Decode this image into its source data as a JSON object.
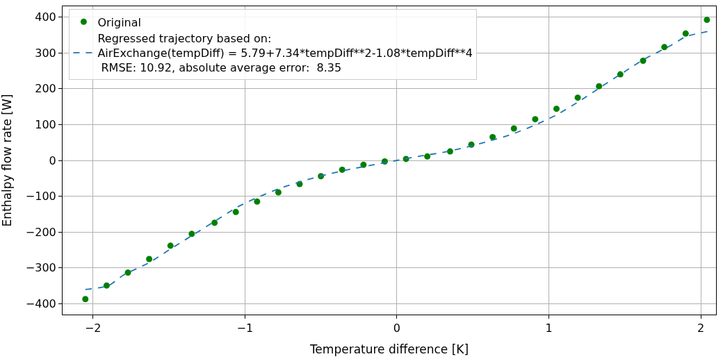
{
  "chart_data": {
    "type": "scatter",
    "xlabel": "Temperature difference [K]",
    "ylabel": "Enthalpy flow rate [W]",
    "x": [
      -2.05,
      -1.91,
      -1.77,
      -1.63,
      -1.49,
      -1.35,
      -1.2,
      -1.06,
      -0.92,
      -0.78,
      -0.64,
      -0.5,
      -0.36,
      -0.22,
      -0.08,
      0.06,
      0.2,
      0.35,
      0.49,
      0.63,
      0.77,
      0.91,
      1.05,
      1.19,
      1.33,
      1.47,
      1.62,
      1.76,
      1.9,
      2.04
    ],
    "series": [
      {
        "name": "Original",
        "color": "#008000",
        "marker": "circle",
        "values": [
          -387,
          -349,
          -313,
          -275,
          -238,
          -205,
          -174,
          -144,
          -115,
          -89,
          -66,
          -44,
          -26,
          -12,
          -3,
          4,
          11,
          25,
          44,
          65,
          89,
          115,
          144,
          175,
          207,
          240,
          278,
          316,
          354,
          392
        ]
      },
      {
        "name": "Regressed trajectory based on:\nAirExchange(tempDiff) = 5.79+7.34*tempDiff**2-1.08*tempDiff**4\n RMSE: 10.92, absolute average error:  8.35",
        "type": "line",
        "line_style": "dashed",
        "marker": "none",
        "color": "#1f77b4",
        "x": [
          -2.05,
          -1.9,
          -1.8,
          -1.63,
          -1.5,
          -1.35,
          -1.2,
          -1.05,
          -0.9,
          -0.75,
          -0.6,
          -0.45,
          -0.3,
          -0.15,
          0,
          0.15,
          0.3,
          0.45,
          0.6,
          0.75,
          0.9,
          1.05,
          1.2,
          1.35,
          1.5,
          1.63,
          1.8,
          1.9,
          2.05
        ],
        "values": [
          -360,
          -350,
          -320,
          -285,
          -250,
          -210,
          -170,
          -130,
          -100,
          -75,
          -55,
          -38,
          -24,
          -12,
          0,
          12,
          22,
          36,
          53,
          72,
          97,
          127,
          165,
          207,
          248,
          283,
          320,
          345,
          360
        ]
      }
    ],
    "xlim": [
      -2.2,
      2.1
    ],
    "ylim": [
      -430,
      430
    ],
    "xticks": [
      {
        "value": -2,
        "label": "−2"
      },
      {
        "value": -1,
        "label": "−1"
      },
      0,
      1,
      2
    ],
    "yticks": [
      {
        "value": -400,
        "label": "−400"
      },
      {
        "value": -300,
        "label": "−300"
      },
      {
        "value": -200,
        "label": "−200"
      },
      {
        "value": -100,
        "label": "−100"
      },
      0,
      100,
      200,
      300,
      400
    ],
    "grid": true,
    "legend": "top left"
  }
}
